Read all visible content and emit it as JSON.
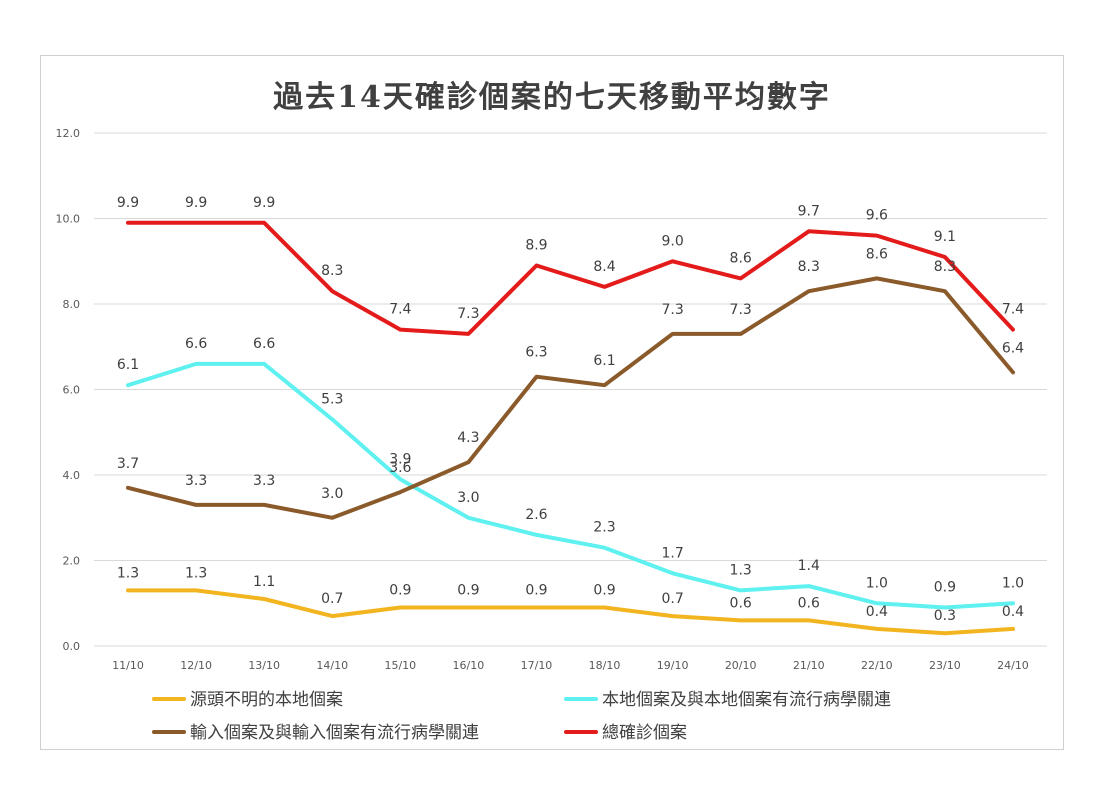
{
  "chart_data": {
    "type": "line",
    "title": "過去14天確診個案的七天移動平均數字",
    "xlabel": "",
    "ylabel": "",
    "ylim": [
      0,
      12
    ],
    "yticks": [
      "0.0",
      "2.0",
      "4.0",
      "6.0",
      "8.0",
      "10.0",
      "12.0"
    ],
    "grid": true,
    "legend_position": "bottom",
    "categories": [
      "11/10",
      "12/10",
      "13/10",
      "14/10",
      "15/10",
      "16/10",
      "17/10",
      "18/10",
      "19/10",
      "20/10",
      "21/10",
      "22/10",
      "23/10",
      "24/10"
    ],
    "series": [
      {
        "name": "源頭不明的本地個案",
        "color": "#f2b51f",
        "values": [
          1.3,
          1.3,
          1.1,
          0.7,
          0.9,
          0.9,
          0.9,
          0.9,
          0.7,
          0.6,
          0.6,
          0.4,
          0.3,
          0.4
        ]
      },
      {
        "name": "本地個案及與本地個案有流行病學關連",
        "color": "#5ff0f0",
        "values": [
          6.1,
          6.6,
          6.6,
          5.3,
          3.9,
          3.0,
          2.6,
          2.3,
          1.7,
          1.3,
          1.4,
          1.0,
          0.9,
          1.0
        ]
      },
      {
        "name": "輸入個案及與輸入個案有流行病學關連",
        "color": "#8b5a2b",
        "values": [
          3.7,
          3.3,
          3.3,
          3.0,
          3.6,
          4.3,
          6.3,
          6.1,
          7.3,
          7.3,
          8.3,
          8.6,
          8.3,
          6.4
        ]
      },
      {
        "name": "總確診個案",
        "color": "#e31b1b",
        "values": [
          9.9,
          9.9,
          9.9,
          8.3,
          7.4,
          7.3,
          8.9,
          8.4,
          9.0,
          8.6,
          9.7,
          9.6,
          9.1,
          7.4
        ]
      }
    ]
  }
}
